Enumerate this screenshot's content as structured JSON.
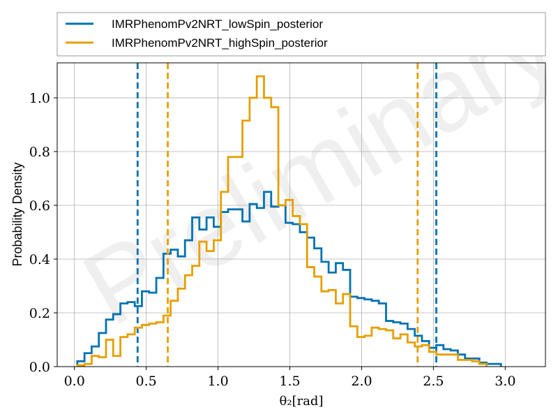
{
  "chart_data": {
    "type": "line",
    "title": "",
    "xlabel": "θ₂[rad]",
    "ylabel": "Probability Density",
    "watermark": "Preliminary",
    "xlim": [
      -0.12,
      3.28
    ],
    "ylim": [
      0,
      1.13
    ],
    "xticks": [
      0.0,
      0.5,
      1.0,
      1.5,
      2.0,
      2.5,
      3.0
    ],
    "xtick_labels": [
      "0.0",
      "0.5",
      "1.0",
      "1.5",
      "2.0",
      "2.5",
      "3.0"
    ],
    "yticks": [
      0.0,
      0.2,
      0.4,
      0.6,
      0.8,
      1.0
    ],
    "ytick_labels": [
      "0.0",
      "0.2",
      "0.4",
      "0.6",
      "0.8",
      "1.0"
    ],
    "grid": true,
    "legend_position": "top, above plot",
    "series": [
      {
        "name": "IMRPhenomPv2NRT_lowSpin_posterior",
        "color": "#0072b2",
        "steps": [
          [
            0.02,
            0.02
          ],
          [
            0.07,
            0.05
          ],
          [
            0.12,
            0.075
          ],
          [
            0.17,
            0.125
          ],
          [
            0.22,
            0.175
          ],
          [
            0.27,
            0.195
          ],
          [
            0.32,
            0.235
          ],
          [
            0.37,
            0.24
          ],
          [
            0.42,
            0.225
          ],
          [
            0.47,
            0.28
          ],
          [
            0.52,
            0.275
          ],
          [
            0.57,
            0.33
          ],
          [
            0.62,
            0.42
          ],
          [
            0.67,
            0.435
          ],
          [
            0.72,
            0.41
          ],
          [
            0.77,
            0.47
          ],
          [
            0.82,
            0.555
          ],
          [
            0.87,
            0.51
          ],
          [
            0.92,
            0.555
          ],
          [
            0.97,
            0.52
          ],
          [
            1.02,
            0.575
          ],
          [
            1.07,
            0.585
          ],
          [
            1.12,
            0.585
          ],
          [
            1.17,
            0.54
          ],
          [
            1.22,
            0.605
          ],
          [
            1.27,
            0.59
          ],
          [
            1.32,
            0.65
          ],
          [
            1.37,
            0.595
          ],
          [
            1.42,
            0.6
          ],
          [
            1.47,
            0.535
          ],
          [
            1.52,
            0.53
          ],
          [
            1.57,
            0.5
          ],
          [
            1.62,
            0.48
          ],
          [
            1.67,
            0.44
          ],
          [
            1.72,
            0.39
          ],
          [
            1.77,
            0.35
          ],
          [
            1.82,
            0.385
          ],
          [
            1.87,
            0.36
          ],
          [
            1.92,
            0.26
          ],
          [
            1.97,
            0.255
          ],
          [
            2.02,
            0.25
          ],
          [
            2.07,
            0.245
          ],
          [
            2.12,
            0.235
          ],
          [
            2.17,
            0.17
          ],
          [
            2.22,
            0.165
          ],
          [
            2.27,
            0.16
          ],
          [
            2.32,
            0.14
          ],
          [
            2.37,
            0.115
          ],
          [
            2.42,
            0.095
          ],
          [
            2.47,
            0.07
          ],
          [
            2.52,
            0.08
          ],
          [
            2.57,
            0.065
          ],
          [
            2.62,
            0.06
          ],
          [
            2.67,
            0.045
          ],
          [
            2.72,
            0.03
          ],
          [
            2.77,
            0.03
          ],
          [
            2.82,
            0.015
          ],
          [
            2.87,
            0.01
          ],
          [
            2.92,
            0.01
          ]
        ],
        "bin_width": 0.05,
        "vlines": [
          0.44,
          2.52
        ]
      },
      {
        "name": "IMRPhenomPv2NRT_highSpin_posterior",
        "color": "#e69f00",
        "steps": [
          [
            0.02,
            0.005
          ],
          [
            0.07,
            0.01
          ],
          [
            0.12,
            0.04
          ],
          [
            0.17,
            0.035
          ],
          [
            0.22,
            0.1
          ],
          [
            0.27,
            0.04
          ],
          [
            0.32,
            0.11
          ],
          [
            0.37,
            0.12
          ],
          [
            0.42,
            0.145
          ],
          [
            0.47,
            0.155
          ],
          [
            0.52,
            0.16
          ],
          [
            0.57,
            0.165
          ],
          [
            0.62,
            0.19
          ],
          [
            0.67,
            0.245
          ],
          [
            0.72,
            0.29
          ],
          [
            0.77,
            0.34
          ],
          [
            0.82,
            0.375
          ],
          [
            0.87,
            0.465
          ],
          [
            0.92,
            0.43
          ],
          [
            0.97,
            0.47
          ],
          [
            1.02,
            0.65
          ],
          [
            1.07,
            0.78
          ],
          [
            1.12,
            0.78
          ],
          [
            1.17,
            0.915
          ],
          [
            1.22,
            1.0
          ],
          [
            1.27,
            1.08
          ],
          [
            1.32,
            1.0
          ],
          [
            1.37,
            0.965
          ],
          [
            1.42,
            0.6
          ],
          [
            1.47,
            0.62
          ],
          [
            1.52,
            0.56
          ],
          [
            1.57,
            0.53
          ],
          [
            1.62,
            0.37
          ],
          [
            1.67,
            0.335
          ],
          [
            1.72,
            0.28
          ],
          [
            1.77,
            0.285
          ],
          [
            1.82,
            0.235
          ],
          [
            1.87,
            0.27
          ],
          [
            1.92,
            0.15
          ],
          [
            1.97,
            0.11
          ],
          [
            2.02,
            0.115
          ],
          [
            2.07,
            0.145
          ],
          [
            2.12,
            0.14
          ],
          [
            2.17,
            0.135
          ],
          [
            2.22,
            0.105
          ],
          [
            2.27,
            0.12
          ],
          [
            2.32,
            0.09
          ],
          [
            2.37,
            0.075
          ],
          [
            2.42,
            0.08
          ],
          [
            2.47,
            0.055
          ],
          [
            2.52,
            0.045
          ],
          [
            2.57,
            0.045
          ],
          [
            2.62,
            0.045
          ],
          [
            2.67,
            0.025
          ],
          [
            2.72,
            0.025
          ],
          [
            2.77,
            0.02
          ],
          [
            2.82,
            0.01
          ]
        ],
        "bin_width": 0.05,
        "vlines": [
          0.65,
          2.39
        ]
      }
    ]
  }
}
